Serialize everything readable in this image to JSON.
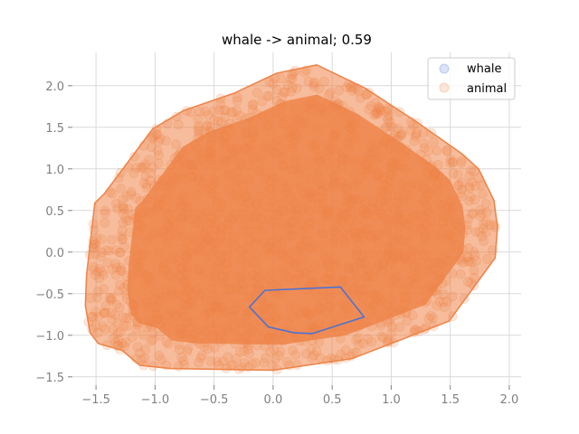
{
  "chart_data": {
    "type": "scatter",
    "title": "whale -> animal; 0.59",
    "xlabel": "",
    "ylabel": "",
    "xlim": [
      -1.7,
      2.1
    ],
    "ylim": [
      -1.6,
      2.4
    ],
    "x_ticks": [
      -1.5,
      -1.0,
      -0.5,
      0.0,
      0.5,
      1.0,
      1.5,
      2.0
    ],
    "x_tick_labels": [
      "−1.5",
      "−1.0",
      "−0.5",
      "0.0",
      "0.5",
      "1.0",
      "1.5",
      "2.0"
    ],
    "y_ticks": [
      -1.5,
      -1.0,
      -0.5,
      0.0,
      0.5,
      1.0,
      1.5,
      2.0
    ],
    "y_tick_labels": [
      "−1.5",
      "−1.0",
      "−0.5",
      "0.0",
      "0.5",
      "1.0",
      "1.5",
      "2.0"
    ],
    "grid": true,
    "legend_position": "top-right",
    "series": [
      {
        "name": "whale",
        "color": "#4c72d4",
        "hull": [
          [
            -0.07,
            -0.46
          ],
          [
            0.57,
            -0.42
          ],
          [
            0.77,
            -0.78
          ],
          [
            0.33,
            -0.98
          ],
          [
            0.18,
            -0.97
          ],
          [
            -0.04,
            -0.9
          ],
          [
            -0.2,
            -0.66
          ]
        ]
      },
      {
        "name": "animal",
        "color": "#ee854a",
        "hull": [
          [
            -1.51,
            0.59
          ],
          [
            -1.43,
            0.7
          ],
          [
            -1.02,
            1.48
          ],
          [
            -0.76,
            1.7
          ],
          [
            -0.33,
            1.91
          ],
          [
            0.03,
            2.15
          ],
          [
            0.37,
            2.25
          ],
          [
            0.78,
            1.97
          ],
          [
            1.21,
            1.57
          ],
          [
            1.6,
            1.18
          ],
          [
            1.74,
            1.0
          ],
          [
            1.87,
            0.62
          ],
          [
            1.9,
            0.3
          ],
          [
            1.88,
            -0.07
          ],
          [
            1.49,
            -0.83
          ],
          [
            0.67,
            -1.28
          ],
          [
            0.0,
            -1.42
          ],
          [
            -0.87,
            -1.4
          ],
          [
            -1.13,
            -1.36
          ],
          [
            -1.28,
            -1.18
          ],
          [
            -1.48,
            -1.1
          ],
          [
            -1.55,
            -0.97
          ],
          [
            -1.59,
            -0.64
          ],
          [
            -1.58,
            -0.28
          ]
        ]
      }
    ]
  }
}
